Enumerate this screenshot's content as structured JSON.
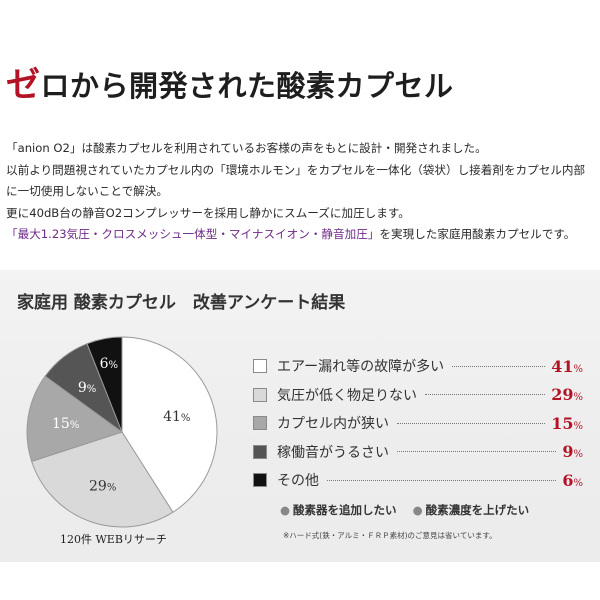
{
  "header": {
    "title_accent": "ゼ",
    "title_rest": "ロから開発された酸素カプセル"
  },
  "intro": {
    "lines": [
      "「anion O2」は酸素カプセルを利用されているお客様の声をもとに設計・開発されました。",
      "以前より問題視されていたカプセル内の「環境ホルモン」をカプセルを一体化（袋状）し接着剤をカプセル内部",
      "に一切使用しないことで解決。",
      "更に40dB台の静音O2コンプレッサーを採用し静かにスムーズに加圧します。"
    ],
    "highlight": "「最大1.23気圧・クロスメッシュ一体型・マイナスイオン・静音加圧」",
    "highlight_tail": "を実現した家庭用酸素カプセルです。"
  },
  "survey": {
    "title": "家庭用 酸素カプセル　改善アンケート結果",
    "source": "120件 WEBリサーチ",
    "addons": [
      "酸素器を追加したい",
      "酸素濃度を上げたい"
    ],
    "footnote": "※ハード式(鉄・アルミ・ＦＲＰ素材)のご意見は省いています。",
    "pct_unit": "%"
  },
  "chart_data": {
    "type": "pie",
    "title": "家庭用 酸素カプセル　改善アンケート結果",
    "categories": [
      "エアー漏れ等の故障が多い",
      "気圧が低く物足りない",
      "カプセル内が狭い",
      "稼働音がうるさい",
      "その他"
    ],
    "values": [
      41,
      29,
      15,
      9,
      6
    ],
    "labels": [
      "41",
      "29",
      "15",
      "9",
      "6"
    ],
    "colors": [
      "#ffffff",
      "#d9d9d9",
      "#a8a8a8",
      "#555555",
      "#111111"
    ],
    "label_colors": [
      "#333333",
      "#333333",
      "#ffffff",
      "#ffffff",
      "#ffffff"
    ],
    "legend": "right"
  }
}
